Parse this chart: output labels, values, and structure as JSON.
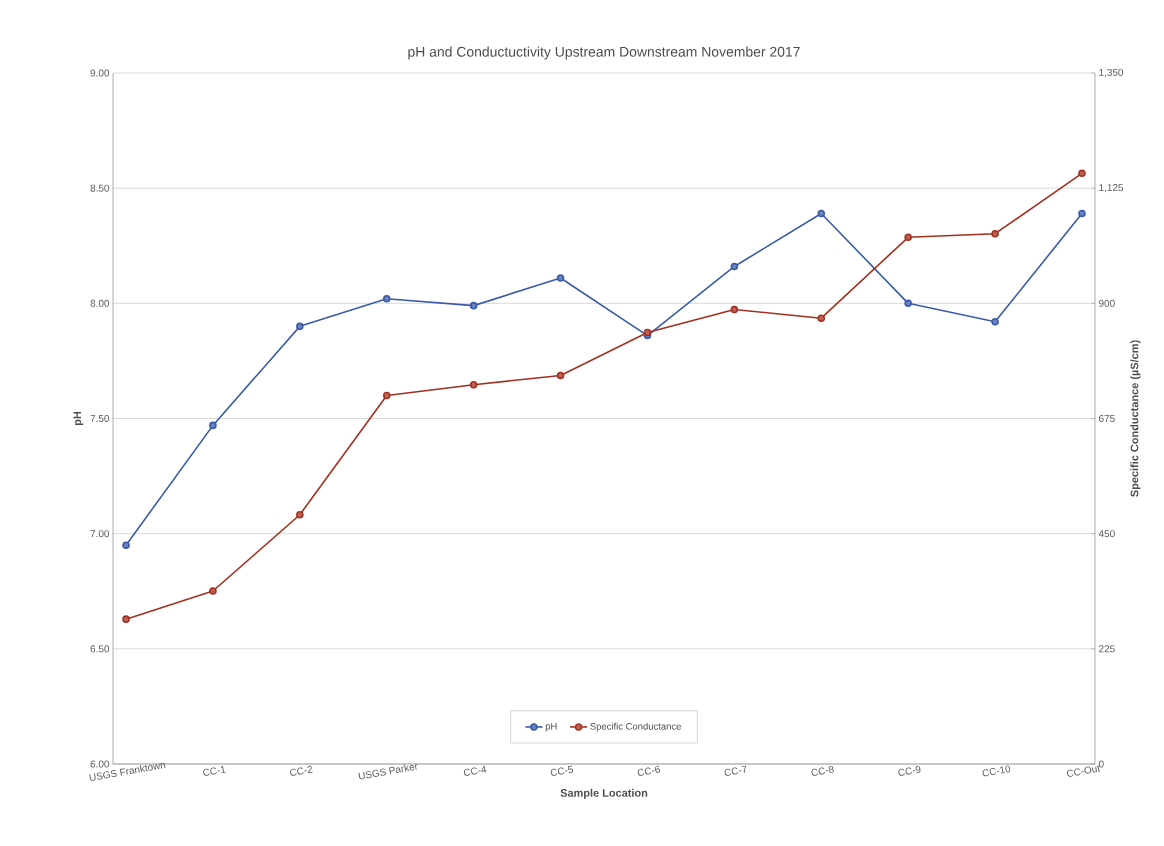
{
  "chart_data": {
    "type": "line",
    "title": "pH and Conductuctivity Upstream Downstream November 2017",
    "xlabel": "Sample Location",
    "ylabel": "pH",
    "y2label": "Specific Conductance (µS/cm)",
    "categories": [
      "USGS Franktown",
      "CC-1",
      "CC-2",
      "USGS Parker",
      "CC-4",
      "CC-5",
      "CC-6",
      "CC-7",
      "CC-8",
      "CC-9",
      "CC-10",
      "CC-Out"
    ],
    "ylim": [
      6,
      9
    ],
    "yticks": [
      {
        "value": 6,
        "label": "6.00"
      },
      {
        "value": 6.5,
        "label": "6.50"
      },
      {
        "value": 7,
        "label": "7.00"
      },
      {
        "value": 7.5,
        "label": "7.50"
      },
      {
        "value": 8,
        "label": "8.00"
      },
      {
        "value": 8.5,
        "label": "8.50"
      },
      {
        "value": 9,
        "label": "9.00"
      }
    ],
    "y2lim": [
      0,
      1350
    ],
    "y2ticks": [
      0,
      225,
      450,
      675,
      900,
      {
        "value": 1125,
        "label": "1,125"
      },
      {
        "value": 1350,
        "label": "1,350"
      }
    ],
    "series": [
      {
        "name": "pH",
        "color": "#3a5aa8",
        "values": [
          6.95,
          7.47,
          7.9,
          8.02,
          7.99,
          8.11,
          7.86,
          8.16,
          8.39,
          8.0,
          7.92,
          8.39
        ]
      },
      {
        "name": "Specific Conductance",
        "color": "#a3301f",
        "axis": "y2",
        "values": [
          283,
          338,
          487,
          720,
          741,
          759,
          843,
          888,
          871,
          1029,
          1036,
          1154
        ]
      }
    ],
    "grid": "y",
    "legend": "bottom",
    "marker": "circle",
    "line_style": "solid"
  }
}
